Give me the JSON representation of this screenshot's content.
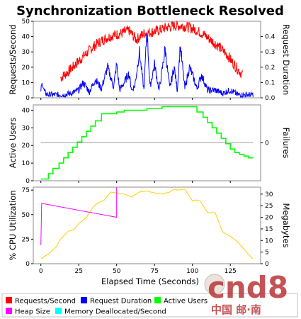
{
  "title": "Synchronization Bottleneck Resolved",
  "xlabel": "Elapsed Time (Seconds)",
  "x_ticks": [
    "0",
    "25",
    "50",
    "75",
    "100",
    "125"
  ],
  "legend": [
    {
      "label": "Requests/Second",
      "color": "#ff0000"
    },
    {
      "label": "Request Duration",
      "color": "#0000ff"
    },
    {
      "label": "Active Users",
      "color": "#00ff00"
    },
    {
      "label": "Heap Size",
      "color": "#ff00ff"
    },
    {
      "label": "Memory Deallocated/Second",
      "color": "#00ffff"
    }
  ],
  "watermark": {
    "main": "cnd8",
    "sub": "中国 邮·南"
  },
  "chart_data": [
    {
      "type": "line",
      "panel": "top",
      "xlim": [
        -5,
        145
      ],
      "y_left": {
        "label": "Requests/Second",
        "lim": [
          0,
          50
        ],
        "ticks": [
          "0",
          "10",
          "20",
          "30",
          "40",
          "50"
        ]
      },
      "y_right": {
        "label": "Request Duration",
        "lim": [
          0,
          0.5
        ],
        "ticks": [
          "0.0",
          "0.1",
          "0.2",
          "0.3",
          "0.4"
        ]
      },
      "series": [
        {
          "name": "Requests/Second",
          "axis": "left",
          "color": "#ff0000",
          "x": [
            13,
            18,
            23,
            28,
            33,
            38,
            43,
            48,
            53,
            58,
            63,
            68,
            73,
            78,
            83,
            88,
            93,
            98,
            103,
            108,
            113,
            118,
            123,
            128,
            133
          ],
          "y": [
            13,
            17,
            22,
            27,
            32,
            36,
            39,
            41,
            42,
            44,
            38,
            42,
            43,
            44,
            46,
            47,
            47,
            46,
            44,
            41,
            37,
            33,
            28,
            21,
            15
          ],
          "noise": 3.5
        },
        {
          "name": "Request Duration",
          "axis": "right",
          "color": "#0000ff",
          "x": [
            0,
            1,
            2,
            3,
            5,
            10,
            15,
            20,
            25,
            28,
            32,
            36,
            40,
            44,
            48,
            50,
            52,
            55,
            58,
            60,
            62,
            65,
            68,
            70,
            72,
            75,
            78,
            80,
            82,
            85,
            88,
            90,
            92,
            95,
            98,
            100,
            103,
            106,
            110,
            115,
            120,
            125,
            130,
            135,
            140
          ],
          "y": [
            0.05,
            0.1,
            0.05,
            0.03,
            0.02,
            0.02,
            0.02,
            0.03,
            0.05,
            0.1,
            0.04,
            0.12,
            0.06,
            0.2,
            0.07,
            0.22,
            0.05,
            0.1,
            0.16,
            0.05,
            0.08,
            0.3,
            0.05,
            0.45,
            0.07,
            0.22,
            0.05,
            0.18,
            0.32,
            0.06,
            0.2,
            0.05,
            0.34,
            0.06,
            0.2,
            0.15,
            0.06,
            0.15,
            0.05,
            0.05,
            0.03,
            0.05,
            0.02,
            0.02,
            0.02
          ],
          "noise": 0.03
        }
      ]
    },
    {
      "type": "line",
      "panel": "middle",
      "xlim": [
        -5,
        145
      ],
      "y_left": {
        "label": "Active Users",
        "lim": [
          0,
          43
        ],
        "ticks": [
          "0",
          "10",
          "20",
          "30",
          "40"
        ]
      },
      "y_right": {
        "label": "Failures",
        "lim": [
          -1,
          1
        ],
        "ticks": [
          "0"
        ]
      },
      "series": [
        {
          "name": "Active Users",
          "axis": "left",
          "color": "#00ff00",
          "step": true,
          "x": [
            0,
            3,
            5,
            8,
            12,
            15,
            18,
            21,
            24,
            27,
            30,
            33,
            36,
            40,
            50,
            55,
            60,
            65,
            70,
            75,
            80,
            85,
            90,
            95,
            100,
            103,
            107,
            110,
            113,
            116,
            119,
            122,
            125,
            128,
            131,
            134,
            137,
            140
          ],
          "y": [
            1,
            1,
            4,
            7,
            10,
            13,
            16,
            19,
            22,
            25,
            28,
            31,
            34,
            38,
            39,
            40,
            40,
            40,
            41,
            41,
            42,
            42,
            42,
            42,
            42,
            39,
            36,
            33,
            30,
            27,
            24,
            21,
            18,
            16,
            15,
            14,
            13,
            13
          ]
        },
        {
          "name": "Failures",
          "axis": "right",
          "color": "#a0a0a0",
          "x": [
            0,
            140
          ],
          "y": [
            0,
            0
          ]
        }
      ]
    },
    {
      "type": "line",
      "panel": "bottom",
      "xlim": [
        -5,
        145
      ],
      "y_left": {
        "label": "% CPU Utilization",
        "lim": [
          0,
          78
        ],
        "ticks": [
          "0",
          "25",
          "50",
          "75"
        ]
      },
      "y_right": {
        "label": "Megabytes",
        "lim": [
          0,
          33
        ],
        "ticks": [
          "0",
          "5",
          "10",
          "15",
          "20",
          "25",
          "30"
        ]
      },
      "series": [
        {
          "name": "CPU Utilization",
          "axis": "left",
          "color": "#ffcc00",
          "x": [
            0,
            5,
            10,
            13,
            18,
            22,
            25,
            30,
            35,
            38,
            42,
            46,
            50,
            55,
            60,
            65,
            70,
            75,
            80,
            85,
            88,
            90,
            95,
            100,
            102,
            105,
            110,
            115,
            120,
            125,
            130,
            135,
            138,
            140
          ],
          "y": [
            5,
            10,
            17,
            25,
            33,
            35,
            41,
            47,
            59,
            62,
            65,
            73,
            72,
            71,
            68,
            73,
            74,
            72,
            71,
            73,
            76,
            75,
            76,
            64,
            65,
            64,
            52,
            52,
            32,
            28,
            22,
            13,
            8,
            5
          ]
        },
        {
          "name": "Heap Size",
          "axis": "right",
          "color": "#ff00ff",
          "x": [
            0,
            0.5,
            50,
            50
          ],
          "y": [
            8,
            26,
            20,
            33
          ]
        }
      ]
    }
  ]
}
